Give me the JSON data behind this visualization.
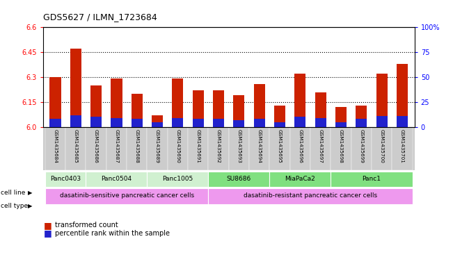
{
  "title": "GDS5627 / ILMN_1723684",
  "samples": [
    "GSM1435684",
    "GSM1435685",
    "GSM1435686",
    "GSM1435687",
    "GSM1435688",
    "GSM1435689",
    "GSM1435690",
    "GSM1435691",
    "GSM1435692",
    "GSM1435693",
    "GSM1435694",
    "GSM1435695",
    "GSM1435696",
    "GSM1435697",
    "GSM1435698",
    "GSM1435699",
    "GSM1435700",
    "GSM1435701"
  ],
  "red_values": [
    6.3,
    6.47,
    6.25,
    6.29,
    6.2,
    6.07,
    6.29,
    6.22,
    6.22,
    6.19,
    6.26,
    6.13,
    6.32,
    6.21,
    6.12,
    6.13,
    6.32,
    6.38
  ],
  "blue_percentiles": [
    8,
    12,
    10,
    9,
    8,
    5,
    9,
    8,
    8,
    7,
    8,
    5,
    10,
    9,
    5,
    8,
    11,
    11
  ],
  "y_min": 6.0,
  "y_max": 6.6,
  "y_ticks_left": [
    6.0,
    6.15,
    6.3,
    6.45,
    6.6
  ],
  "y_ticks_right": [
    0,
    25,
    50,
    75,
    100
  ],
  "cell_lines": [
    {
      "label": "Panc0403",
      "start": 0,
      "end": 2
    },
    {
      "label": "Panc0504",
      "start": 2,
      "end": 5
    },
    {
      "label": "Panc1005",
      "start": 5,
      "end": 8
    },
    {
      "label": "SU8686",
      "start": 8,
      "end": 11
    },
    {
      "label": "MiaPaCa2",
      "start": 11,
      "end": 14
    },
    {
      "label": "Panc1",
      "start": 14,
      "end": 18
    }
  ],
  "cell_line_colors": [
    "#d0f0d0",
    "#d0f0d0",
    "#d0f0d0",
    "#80e080",
    "#80e080",
    "#80e080"
  ],
  "cell_types": [
    {
      "label": "dasatinib-sensitive pancreatic cancer cells",
      "start": 0,
      "end": 8
    },
    {
      "label": "dasatinib-resistant pancreatic cancer cells",
      "start": 8,
      "end": 18
    }
  ],
  "cell_type_color": "#ee99ee",
  "bar_color_red": "#cc2200",
  "bar_color_blue": "#2222cc",
  "tick_area_color": "#cccccc",
  "grid_color": "#000000",
  "bar_width": 0.55
}
